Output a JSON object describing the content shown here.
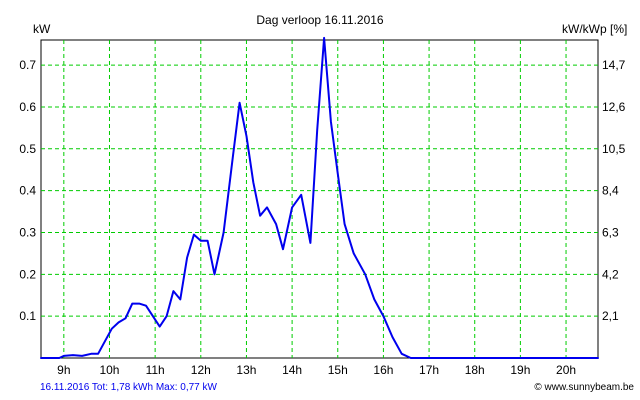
{
  "chart_data": {
    "type": "line",
    "title": "Dag  verloop 16.11.2016",
    "ylabel_left": "kW",
    "ylabel_right": "kW/kWp [%]",
    "x_ticks": [
      "9h",
      "10h",
      "11h",
      "12h",
      "13h",
      "14h",
      "15h",
      "16h",
      "17h",
      "18h",
      "19h",
      "20h"
    ],
    "y_ticks_left": [
      "0.1",
      "0.2",
      "0.3",
      "0.4",
      "0.5",
      "0.6",
      "0.7"
    ],
    "y_ticks_right": [
      "2,1",
      "4,2",
      "6,3",
      "8,4",
      "10,5",
      "12,6",
      "14,7"
    ],
    "xlim": [
      8.5,
      20.7
    ],
    "ylim": [
      0,
      0.76
    ],
    "grid": true,
    "line_color": "#0000ee",
    "grid_color": "#00cc00",
    "series": [
      {
        "x": [
          8.5,
          8.9,
          9.0,
          9.2,
          9.4,
          9.6,
          9.75,
          9.9,
          10.05,
          10.2,
          10.35,
          10.5,
          10.65,
          10.8,
          10.95,
          11.1,
          11.25,
          11.4,
          11.55,
          11.7,
          11.85,
          12.0,
          12.15,
          12.3,
          12.5,
          12.7,
          12.85,
          13.0,
          13.15,
          13.3,
          13.45,
          13.65,
          13.8,
          14.0,
          14.2,
          14.4,
          14.55,
          14.7,
          14.85,
          15.0,
          15.15,
          15.35,
          15.6,
          15.8,
          16.0,
          16.2,
          16.4,
          16.6,
          17.0,
          20.7
        ],
        "y": [
          0.0,
          0.0,
          0.005,
          0.007,
          0.005,
          0.01,
          0.01,
          0.04,
          0.07,
          0.085,
          0.095,
          0.13,
          0.13,
          0.125,
          0.1,
          0.075,
          0.1,
          0.16,
          0.14,
          0.24,
          0.295,
          0.28,
          0.28,
          0.2,
          0.3,
          0.48,
          0.61,
          0.53,
          0.42,
          0.34,
          0.36,
          0.32,
          0.26,
          0.36,
          0.39,
          0.275,
          0.545,
          0.765,
          0.565,
          0.44,
          0.32,
          0.25,
          0.2,
          0.14,
          0.1,
          0.05,
          0.01,
          0.0,
          0.0,
          0.0
        ]
      }
    ]
  },
  "footer": {
    "left": "16.11.2016 Tot: 1,78 kWh Max: 0,77 kW",
    "right": "© www.sunnybeam.be"
  }
}
